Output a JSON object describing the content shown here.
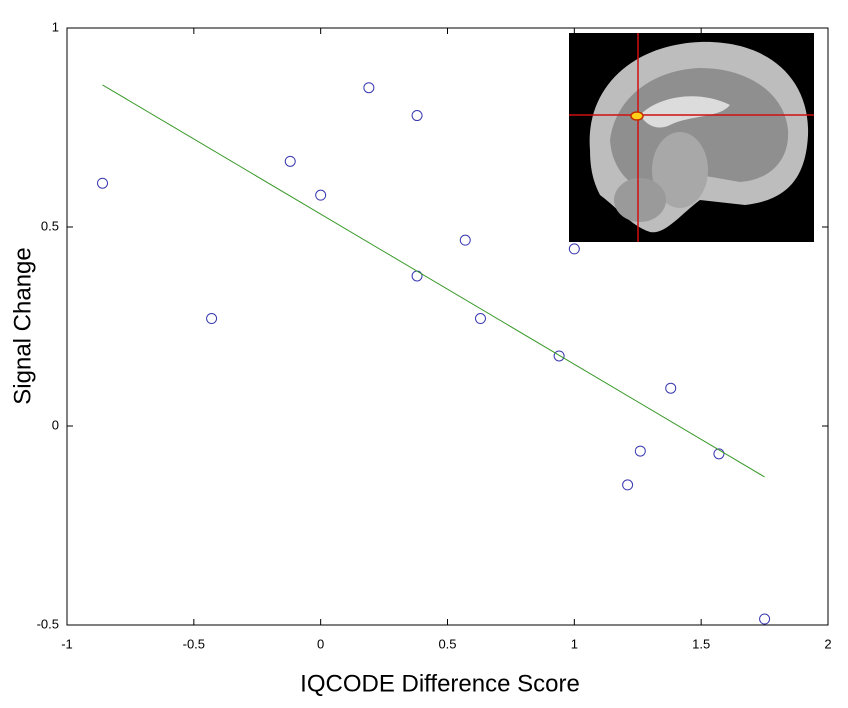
{
  "chart_data": {
    "type": "scatter",
    "xlabel": "IQCODE Difference Score",
    "ylabel": "Signal Change",
    "xlim": [
      -1,
      2
    ],
    "ylim": [
      -0.5,
      1
    ],
    "xticks": [
      -1,
      -0.5,
      0,
      0.5,
      1,
      1.5,
      2
    ],
    "yticks": [
      -0.5,
      0,
      0.5,
      1
    ],
    "series": [
      {
        "type": "scatter",
        "color": "#3838b0",
        "x": [
          -0.86,
          -0.43,
          -0.12,
          0.0,
          0.19,
          0.38,
          0.38,
          0.57,
          0.63,
          0.94,
          1.0,
          1.38,
          1.26,
          1.21,
          1.57,
          1.75
        ],
        "y": [
          0.61,
          0.27,
          0.665,
          0.58,
          0.85,
          0.78,
          0.377,
          0.467,
          0.27,
          0.176,
          0.445,
          0.095,
          -0.063,
          -0.148,
          -0.07,
          -0.485
        ]
      },
      {
        "type": "line",
        "color": "#3a9a2a",
        "x": [
          -0.86,
          1.75
        ],
        "y": [
          0.857,
          -0.128
        ]
      }
    ]
  }
}
